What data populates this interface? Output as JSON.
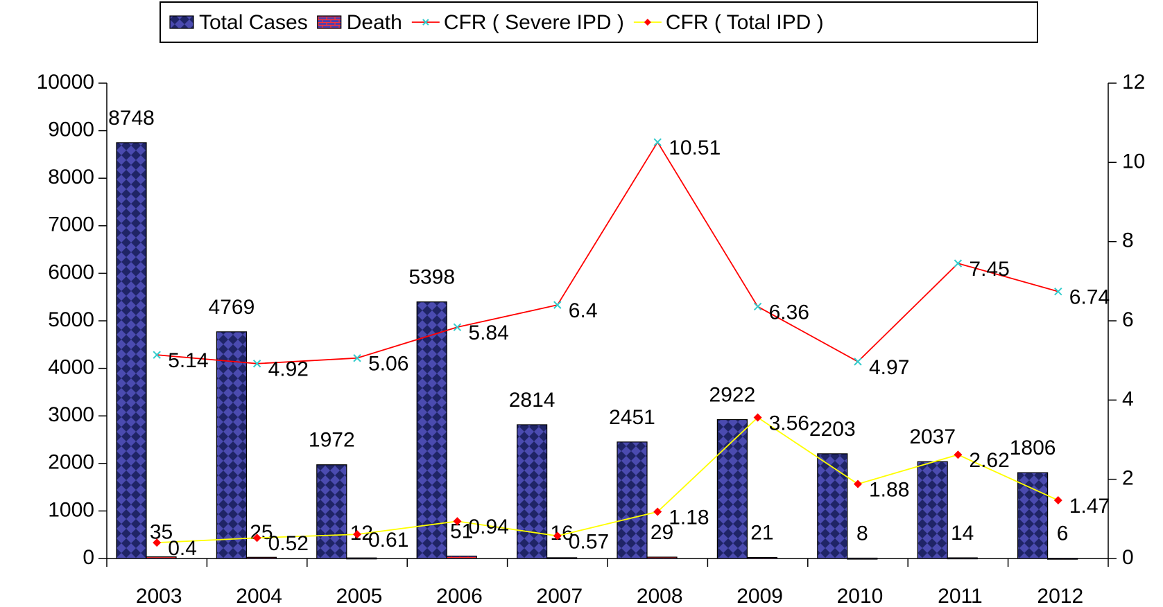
{
  "chart_data": {
    "type": "bar-line",
    "categories": [
      "2003",
      "2004",
      "2005",
      "2006",
      "2007",
      "2008",
      "2009",
      "2010",
      "2011",
      "2012"
    ],
    "series": [
      {
        "name": "Total Cases",
        "type": "bar",
        "color": "#1f2466",
        "values": [
          8748,
          4769,
          1972,
          5398,
          2814,
          2451,
          2922,
          2203,
          2037,
          1806
        ]
      },
      {
        "name": "Death",
        "type": "bar",
        "color": "#4b3fb0",
        "values": [
          35,
          25,
          12,
          51,
          16,
          29,
          21,
          8,
          14,
          6
        ]
      },
      {
        "name": "CFR ( Severe IPD )",
        "type": "line",
        "axis": "y2",
        "color": "#ff0000",
        "marker_color": "#33cccc",
        "values": [
          5.14,
          4.92,
          5.06,
          5.84,
          6.4,
          10.51,
          6.36,
          4.97,
          7.45,
          6.74
        ]
      },
      {
        "name": "CFR ( Total IPD )",
        "type": "line",
        "axis": "y2",
        "color": "#ffff00",
        "marker_color": "#ff0000",
        "values": [
          0.4,
          0.52,
          0.61,
          0.94,
          0.57,
          1.18,
          3.56,
          1.88,
          2.62,
          1.47
        ]
      }
    ],
    "ylim": [
      0,
      10000
    ],
    "yticks": [
      0,
      1000,
      2000,
      3000,
      4000,
      5000,
      6000,
      7000,
      8000,
      9000,
      10000
    ],
    "y2lim": [
      0,
      12
    ],
    "y2ticks": [
      0,
      2,
      4,
      6,
      8,
      10,
      12
    ],
    "legend": "top"
  }
}
